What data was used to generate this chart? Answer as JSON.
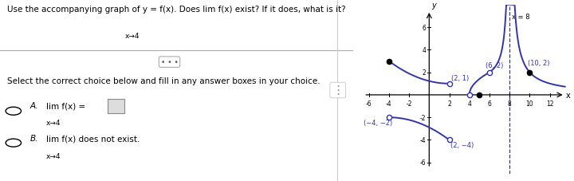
{
  "background_color": "#ffffff",
  "curve_color": "#3333aa",
  "label_color": "#3333aa",
  "graph_xlim": [
    -7,
    14
  ],
  "graph_ylim": [
    -7,
    8
  ],
  "xticks": [
    -6,
    -4,
    -2,
    2,
    4,
    6,
    8,
    10,
    12
  ],
  "yticks": [
    -6,
    -4,
    -2,
    2,
    4,
    6
  ],
  "x_asymptote": 8
}
